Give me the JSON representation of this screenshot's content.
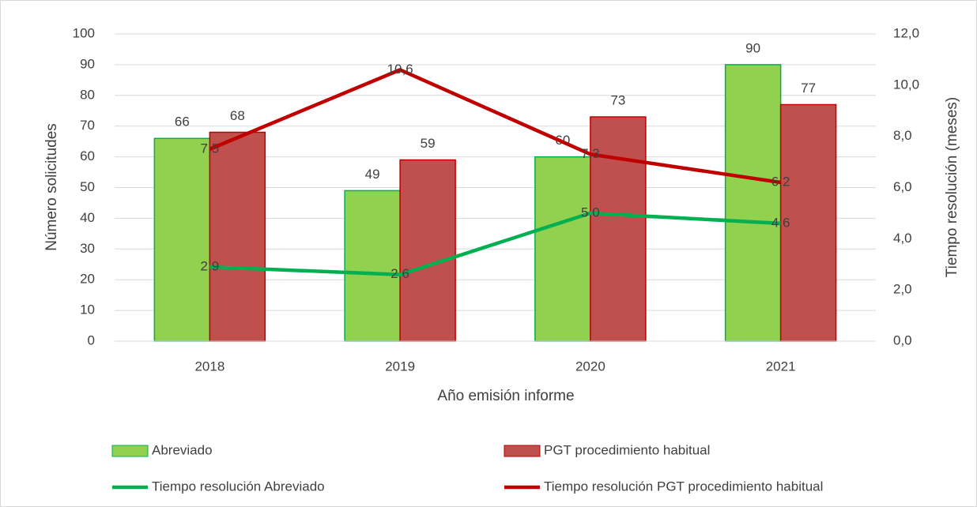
{
  "chart_data": {
    "type": "bar",
    "categories": [
      "2018",
      "2019",
      "2020",
      "2021"
    ],
    "xlabel": "Año emisión informe",
    "ylabel": "Número solicitudes",
    "y2label": "Tiempo resolución (meses)",
    "ylim": [
      0,
      100
    ],
    "yticks": [
      0,
      10,
      20,
      30,
      40,
      50,
      60,
      70,
      80,
      90,
      100
    ],
    "y2lim": [
      0,
      12
    ],
    "y2ticks": [
      {
        "value": 0,
        "label": "0,0"
      },
      {
        "value": 2,
        "label": "2,0"
      },
      {
        "value": 4,
        "label": "4,0"
      },
      {
        "value": 6,
        "label": "6,0"
      },
      {
        "value": 8,
        "label": "8,0"
      },
      {
        "value": 10,
        "label": "10,0"
      },
      {
        "value": 12,
        "label": "12,0"
      }
    ],
    "grid": true,
    "legend": "bottom",
    "series": [
      {
        "name": "Abreviado",
        "type": "bar",
        "color": "#92d050",
        "edge": "#00b050",
        "values": [
          66,
          49,
          60,
          90
        ]
      },
      {
        "name": "PGT procedimiento habitual",
        "type": "bar",
        "color": "#c0504d",
        "edge": "#c00000",
        "values": [
          68,
          59,
          73,
          77
        ]
      },
      {
        "name": "Tiempo resolución Abreviado",
        "type": "line",
        "axis": "y2",
        "color": "#00b050",
        "values": [
          2.9,
          2.6,
          5.0,
          4.6
        ],
        "value_labels": [
          "2,9",
          "2,6",
          "5,0",
          "4,6"
        ]
      },
      {
        "name": "Tiempo resolución PGT procedimiento habitual",
        "type": "line",
        "axis": "y2",
        "color": "#c00000",
        "values": [
          7.5,
          10.6,
          7.3,
          6.2
        ],
        "value_labels": [
          "7,5",
          "10,6",
          "7,3",
          "6,2"
        ]
      }
    ]
  }
}
